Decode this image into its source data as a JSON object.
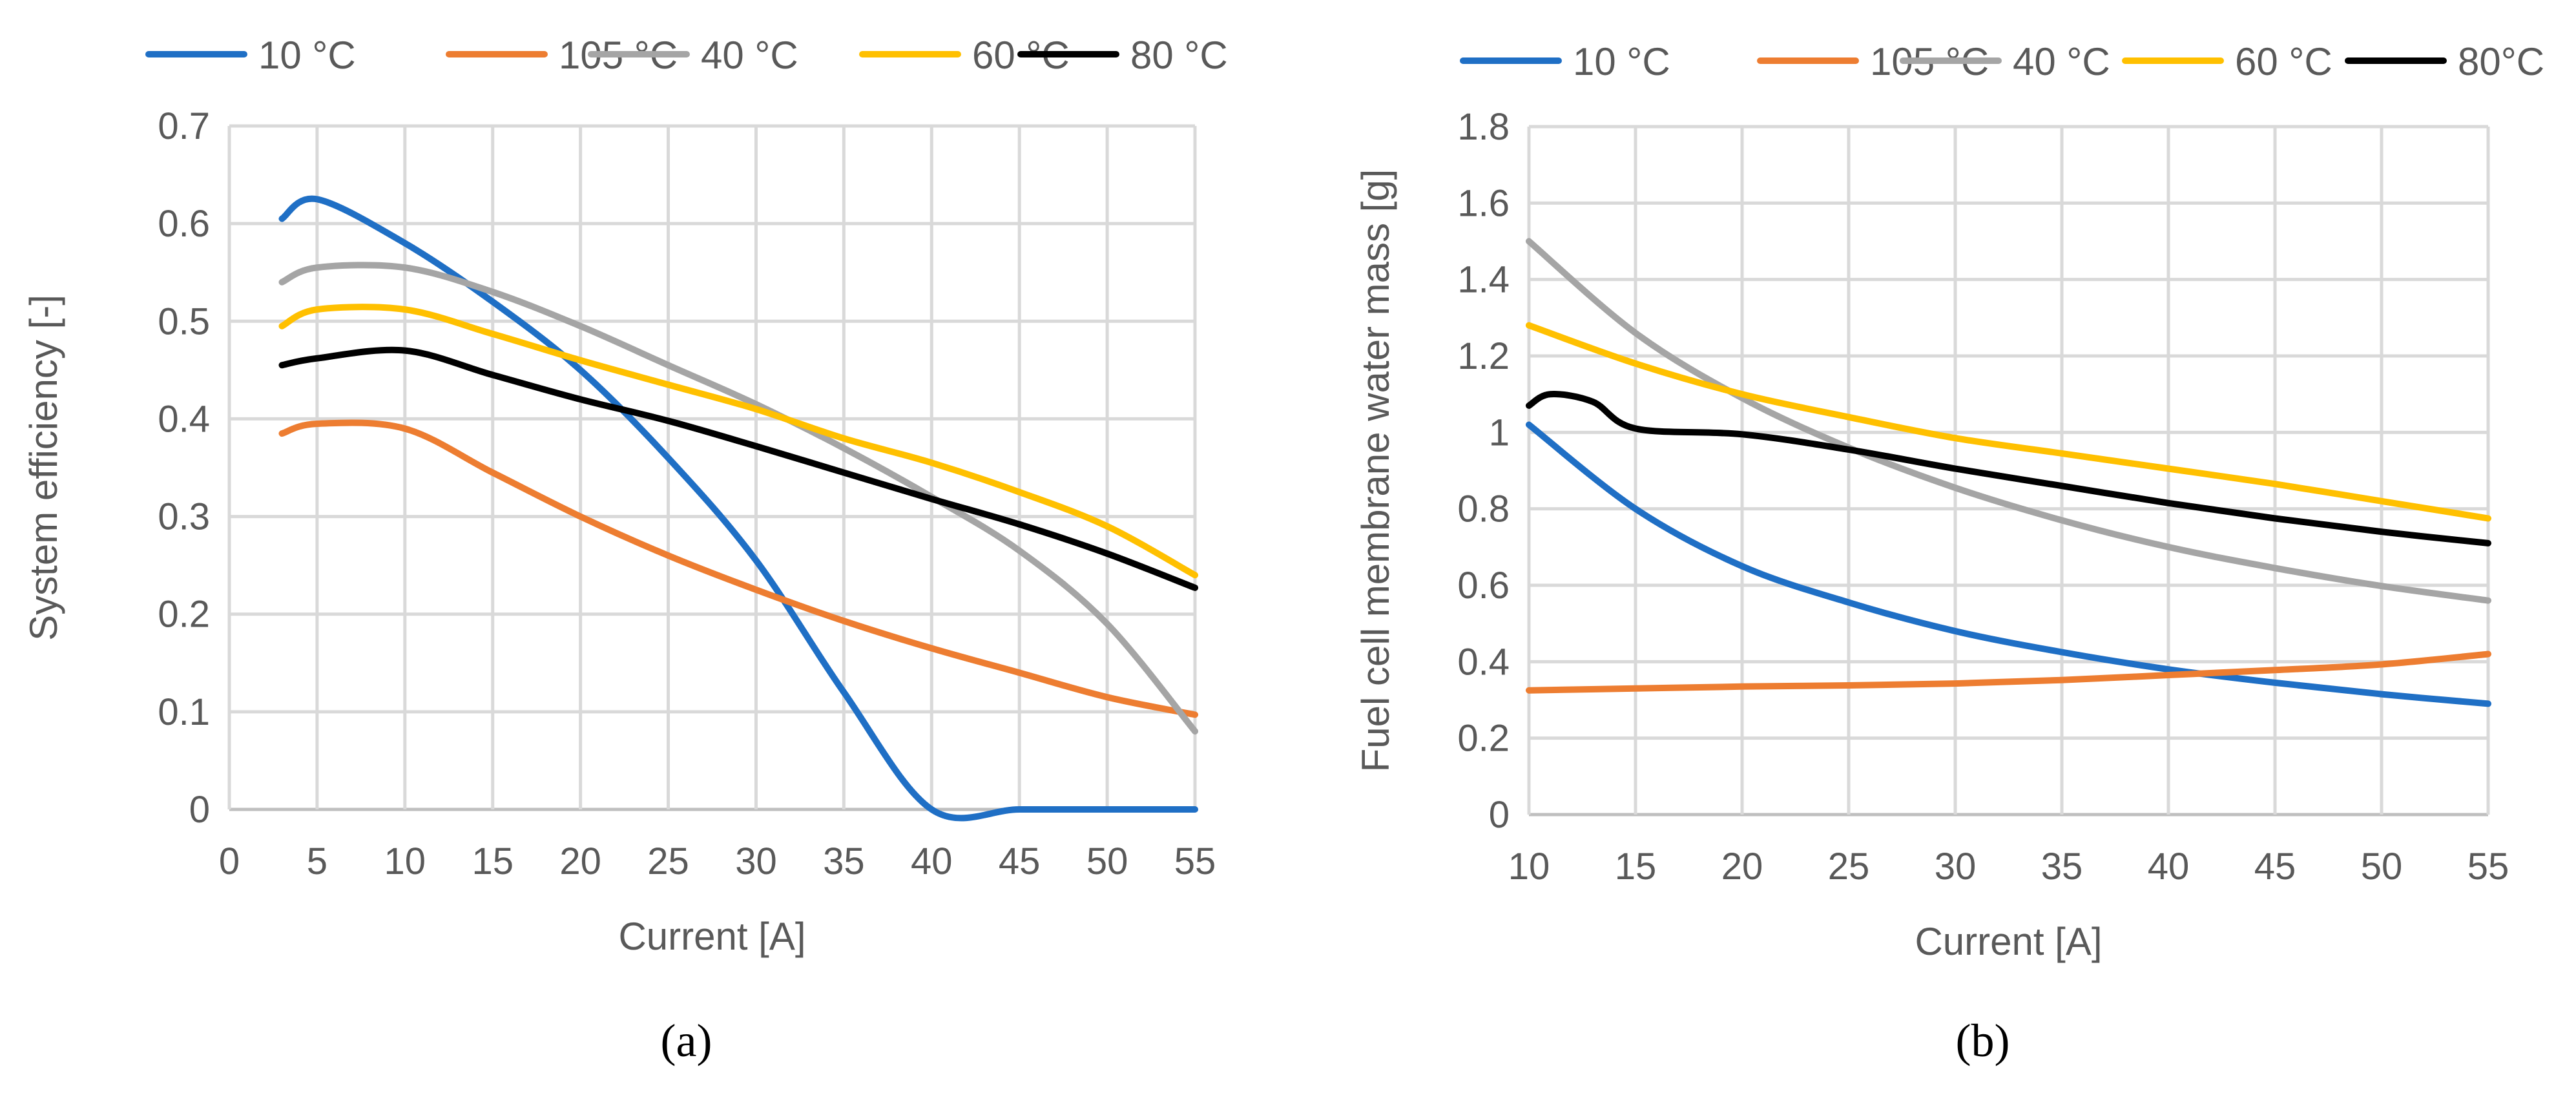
{
  "chart_data": [
    {
      "type": "line",
      "panel_label": "(a)",
      "xlabel": "Current [A]",
      "ylabel": "System efficiency [-]",
      "xlim": [
        0,
        55
      ],
      "ylim": [
        0,
        0.7
      ],
      "xticks": [
        "0",
        "5",
        "10",
        "15",
        "20",
        "25",
        "30",
        "35",
        "40",
        "45",
        "50",
        "55"
      ],
      "yticks": [
        "0",
        "0.1",
        "0.2",
        "0.3",
        "0.4",
        "0.5",
        "0.6",
        "0.7"
      ],
      "grid": true,
      "legend_position": "top",
      "series": [
        {
          "name": "10 °C",
          "color": "#1f6fc5",
          "points": [
            [
              3,
              0.605
            ],
            [
              5,
              0.625
            ],
            [
              10,
              0.58
            ],
            [
              15,
              0.52
            ],
            [
              20,
              0.45
            ],
            [
              25,
              0.36
            ],
            [
              30,
              0.255
            ],
            [
              35,
              0.12
            ],
            [
              40,
              0.0
            ],
            [
              45,
              0.0
            ],
            [
              50,
              0.0
            ],
            [
              55,
              0.0
            ]
          ]
        },
        {
          "name": "105 °C",
          "color": "#ed7d31",
          "points": [
            [
              3,
              0.385
            ],
            [
              5,
              0.395
            ],
            [
              10,
              0.39
            ],
            [
              15,
              0.345
            ],
            [
              20,
              0.3
            ],
            [
              25,
              0.26
            ],
            [
              30,
              0.225
            ],
            [
              35,
              0.193
            ],
            [
              40,
              0.165
            ],
            [
              45,
              0.14
            ],
            [
              50,
              0.115
            ],
            [
              55,
              0.097
            ]
          ]
        },
        {
          "name": "40 °C",
          "color": "#a5a5a5",
          "points": [
            [
              3,
              0.54
            ],
            [
              5,
              0.555
            ],
            [
              10,
              0.555
            ],
            [
              15,
              0.53
            ],
            [
              20,
              0.495
            ],
            [
              25,
              0.455
            ],
            [
              30,
              0.415
            ],
            [
              35,
              0.37
            ],
            [
              40,
              0.32
            ],
            [
              45,
              0.265
            ],
            [
              50,
              0.19
            ],
            [
              55,
              0.08
            ]
          ]
        },
        {
          "name": "60 °C",
          "color": "#ffc000",
          "points": [
            [
              3,
              0.495
            ],
            [
              5,
              0.512
            ],
            [
              10,
              0.512
            ],
            [
              15,
              0.487
            ],
            [
              20,
              0.46
            ],
            [
              25,
              0.435
            ],
            [
              30,
              0.41
            ],
            [
              35,
              0.38
            ],
            [
              40,
              0.355
            ],
            [
              45,
              0.325
            ],
            [
              50,
              0.29
            ],
            [
              55,
              0.24
            ]
          ]
        },
        {
          "name": "80 °C",
          "color": "#000000",
          "points": [
            [
              3,
              0.455
            ],
            [
              5,
              0.462
            ],
            [
              10,
              0.47
            ],
            [
              15,
              0.445
            ],
            [
              20,
              0.42
            ],
            [
              25,
              0.398
            ],
            [
              30,
              0.372
            ],
            [
              35,
              0.345
            ],
            [
              40,
              0.318
            ],
            [
              45,
              0.292
            ],
            [
              50,
              0.262
            ],
            [
              55,
              0.227
            ]
          ]
        }
      ]
    },
    {
      "type": "line",
      "panel_label": "(b)",
      "xlabel": "Current [A]",
      "ylabel": "Fuel cell membrane water mass [g]",
      "xlim": [
        10,
        55
      ],
      "ylim": [
        0,
        1.8
      ],
      "xticks": [
        "10",
        "15",
        "20",
        "25",
        "30",
        "35",
        "40",
        "45",
        "50",
        "55"
      ],
      "yticks": [
        "0",
        "0.2",
        "0.4",
        "0.6",
        "0.8",
        "1",
        "1.2",
        "1.4",
        "1.6",
        "1.8"
      ],
      "grid": true,
      "legend_position": "top",
      "series": [
        {
          "name": "10 °C",
          "color": "#1f6fc5",
          "points": [
            [
              10,
              1.02
            ],
            [
              15,
              0.8
            ],
            [
              20,
              0.65
            ],
            [
              25,
              0.555
            ],
            [
              30,
              0.48
            ],
            [
              35,
              0.425
            ],
            [
              40,
              0.38
            ],
            [
              45,
              0.345
            ],
            [
              50,
              0.315
            ],
            [
              55,
              0.29
            ]
          ]
        },
        {
          "name": "105 °C",
          "color": "#ed7d31",
          "points": [
            [
              10,
              0.325
            ],
            [
              15,
              0.33
            ],
            [
              20,
              0.335
            ],
            [
              25,
              0.338
            ],
            [
              30,
              0.343
            ],
            [
              35,
              0.352
            ],
            [
              40,
              0.365
            ],
            [
              45,
              0.378
            ],
            [
              50,
              0.393
            ],
            [
              55,
              0.42
            ]
          ]
        },
        {
          "name": "40 °C",
          "color": "#a5a5a5",
          "points": [
            [
              10,
              1.5
            ],
            [
              15,
              1.26
            ],
            [
              20,
              1.09
            ],
            [
              25,
              0.96
            ],
            [
              30,
              0.855
            ],
            [
              35,
              0.77
            ],
            [
              40,
              0.7
            ],
            [
              45,
              0.645
            ],
            [
              50,
              0.598
            ],
            [
              55,
              0.56
            ]
          ]
        },
        {
          "name": "60 °C",
          "color": "#ffc000",
          "points": [
            [
              10,
              1.28
            ],
            [
              15,
              1.18
            ],
            [
              20,
              1.1
            ],
            [
              25,
              1.04
            ],
            [
              30,
              0.985
            ],
            [
              35,
              0.945
            ],
            [
              40,
              0.905
            ],
            [
              45,
              0.865
            ],
            [
              50,
              0.82
            ],
            [
              55,
              0.775
            ]
          ]
        },
        {
          "name": "80°C",
          "color": "#000000",
          "points": [
            [
              10,
              1.07
            ],
            [
              11,
              1.1
            ],
            [
              13,
              1.08
            ],
            [
              15,
              1.01
            ],
            [
              20,
              0.995
            ],
            [
              25,
              0.955
            ],
            [
              30,
              0.905
            ],
            [
              35,
              0.86
            ],
            [
              40,
              0.815
            ],
            [
              45,
              0.775
            ],
            [
              50,
              0.74
            ],
            [
              55,
              0.71
            ]
          ]
        }
      ]
    }
  ]
}
